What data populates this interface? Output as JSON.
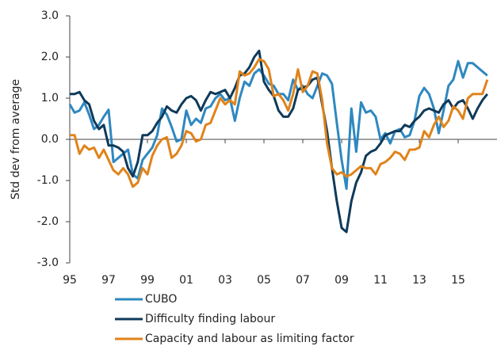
{
  "chart_data": {
    "type": "line",
    "y_label": "Std dev from average",
    "x": [
      1995,
      1995.25,
      1995.5,
      1995.75,
      1996,
      1996.25,
      1996.5,
      1996.75,
      1997,
      1997.25,
      1997.5,
      1997.75,
      1998,
      1998.25,
      1998.5,
      1998.75,
      1999,
      1999.25,
      1999.5,
      1999.75,
      2000,
      2000.25,
      2000.5,
      2000.75,
      2001,
      2001.25,
      2001.5,
      2001.75,
      2002,
      2002.25,
      2002.5,
      2002.75,
      2003,
      2003.25,
      2003.5,
      2003.75,
      2004,
      2004.25,
      2004.5,
      2004.75,
      2005,
      2005.25,
      2005.5,
      2005.75,
      2006,
      2006.25,
      2006.5,
      2006.75,
      2007,
      2007.25,
      2007.5,
      2007.75,
      2008,
      2008.25,
      2008.5,
      2008.75,
      2009,
      2009.25,
      2009.5,
      2009.75,
      2010,
      2010.25,
      2010.5,
      2010.75,
      2011,
      2011.25,
      2011.5,
      2011.75,
      2012,
      2012.25,
      2012.5,
      2012.75,
      2013,
      2013.25,
      2013.5,
      2013.75,
      2014,
      2014.25,
      2014.5,
      2014.75,
      2015,
      2015.25,
      2015.5,
      2015.75,
      2016,
      2016.25,
      2016.5
    ],
    "series": [
      {
        "name": "CUBO",
        "color": "#2e88c0",
        "values": [
          0.85,
          0.65,
          0.7,
          0.9,
          0.6,
          0.25,
          0.35,
          0.55,
          0.72,
          -0.55,
          -0.45,
          -0.35,
          -0.25,
          -0.85,
          -0.95,
          -0.5,
          -0.35,
          -0.2,
          0.1,
          0.75,
          0.6,
          0.3,
          -0.05,
          0.0,
          0.7,
          0.35,
          0.5,
          0.4,
          0.75,
          0.8,
          1.0,
          1.1,
          0.95,
          1.0,
          0.45,
          1.0,
          1.4,
          1.3,
          1.6,
          1.7,
          1.55,
          1.35,
          1.3,
          1.1,
          1.1,
          0.95,
          1.45,
          1.2,
          1.3,
          1.1,
          1.0,
          1.3,
          1.6,
          1.55,
          1.35,
          0.4,
          -0.5,
          -1.2,
          0.75,
          -0.3,
          0.9,
          0.65,
          0.7,
          0.55,
          0.0,
          0.15,
          -0.1,
          0.2,
          0.25,
          0.05,
          0.1,
          0.45,
          1.05,
          1.25,
          1.1,
          0.75,
          0.15,
          0.7,
          1.3,
          1.45,
          1.9,
          1.5,
          1.85,
          1.85,
          1.75,
          1.65,
          1.55
        ]
      },
      {
        "name": "Difficulty finding labour",
        "color": "#0f3a5a",
        "values": [
          1.1,
          1.1,
          1.15,
          0.95,
          0.85,
          0.45,
          0.25,
          0.35,
          -0.15,
          -0.15,
          -0.2,
          -0.3,
          -0.7,
          -0.9,
          -0.55,
          0.1,
          0.1,
          0.2,
          0.4,
          0.55,
          0.8,
          0.7,
          0.65,
          0.85,
          1.0,
          1.05,
          0.95,
          0.7,
          0.95,
          1.15,
          1.1,
          1.15,
          1.2,
          1.0,
          1.25,
          1.55,
          1.6,
          1.75,
          2.0,
          2.15,
          1.4,
          1.2,
          1.05,
          0.7,
          0.55,
          0.55,
          0.75,
          1.2,
          1.25,
          1.3,
          1.45,
          1.5,
          0.85,
          0.2,
          -0.7,
          -1.5,
          -2.15,
          -2.25,
          -1.5,
          -1.05,
          -0.8,
          -0.4,
          -0.3,
          -0.25,
          -0.1,
          0.1,
          0.15,
          0.2,
          0.2,
          0.35,
          0.3,
          0.45,
          0.55,
          0.7,
          0.75,
          0.7,
          0.65,
          0.85,
          0.95,
          0.75,
          0.9,
          0.95,
          0.75,
          0.5,
          0.75,
          0.95,
          1.1
        ]
      },
      {
        "name": "Capacity and labour as limiting factor",
        "color": "#e0831a",
        "values": [
          0.1,
          0.1,
          -0.35,
          -0.15,
          -0.25,
          -0.2,
          -0.45,
          -0.25,
          -0.5,
          -0.75,
          -0.85,
          -0.7,
          -0.85,
          -1.15,
          -1.05,
          -0.7,
          -0.85,
          -0.4,
          -0.15,
          0.0,
          0.05,
          -0.45,
          -0.35,
          -0.15,
          0.2,
          0.15,
          -0.05,
          0.0,
          0.35,
          0.4,
          0.7,
          1.0,
          0.85,
          0.95,
          0.85,
          1.65,
          1.55,
          1.6,
          1.75,
          1.95,
          1.9,
          1.7,
          1.05,
          1.1,
          0.95,
          0.7,
          1.1,
          1.7,
          1.15,
          1.3,
          1.65,
          1.6,
          0.95,
          -0.1,
          -0.7,
          -0.85,
          -0.8,
          -0.9,
          -0.85,
          -0.75,
          -0.65,
          -0.7,
          -0.7,
          -0.85,
          -0.6,
          -0.55,
          -0.45,
          -0.3,
          -0.35,
          -0.5,
          -0.25,
          -0.25,
          -0.2,
          0.2,
          0.05,
          0.35,
          0.55,
          0.3,
          0.45,
          0.8,
          0.7,
          0.5,
          1.0,
          1.1,
          1.1,
          1.1,
          1.45
        ]
      }
    ],
    "xlim": [
      1995,
      2017
    ],
    "xticks": [
      {
        "value": 1995,
        "label": "95"
      },
      {
        "value": 1997,
        "label": "97"
      },
      {
        "value": 1999,
        "label": "99"
      },
      {
        "value": 2001,
        "label": "01"
      },
      {
        "value": 2003,
        "label": "03"
      },
      {
        "value": 2005,
        "label": "05"
      },
      {
        "value": 2007,
        "label": "07"
      },
      {
        "value": 2009,
        "label": "09"
      },
      {
        "value": 2011,
        "label": "11"
      },
      {
        "value": 2013,
        "label": "13"
      },
      {
        "value": 2015,
        "label": "15"
      }
    ],
    "ylim": [
      -3,
      3
    ],
    "yticks": [
      {
        "value": -3,
        "label": "-3.0"
      },
      {
        "value": -2,
        "label": "-2.0"
      },
      {
        "value": -1,
        "label": "-1.0"
      },
      {
        "value": 0,
        "label": "0.0"
      },
      {
        "value": 1,
        "label": "1.0"
      },
      {
        "value": 2,
        "label": "2.0"
      },
      {
        "value": 3,
        "label": "3.0"
      }
    ],
    "grid": false
  }
}
